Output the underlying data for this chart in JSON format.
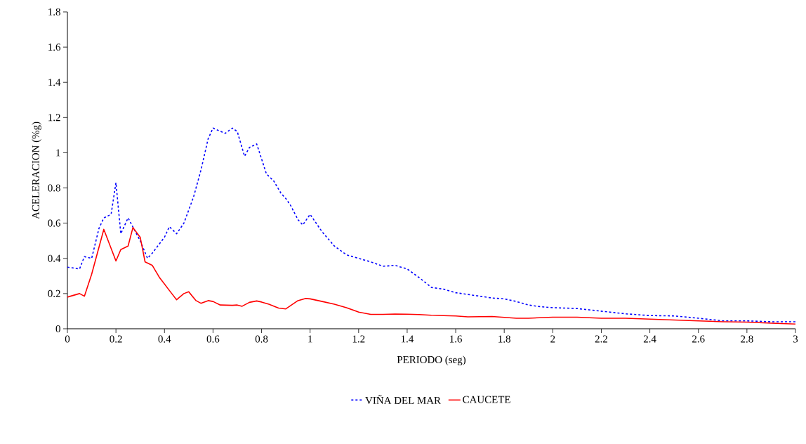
{
  "chart_data": {
    "type": "line",
    "xlabel": "PERIODO (seg)",
    "ylabel": "ACELERACION (%g)",
    "xlim": [
      0,
      3
    ],
    "xticks": [
      0,
      0.2,
      0.4,
      0.6,
      0.8,
      1,
      1.2,
      1.4,
      1.6,
      1.8,
      2,
      2.2,
      2.4,
      2.6,
      2.8,
      3
    ],
    "ylim": [
      0,
      1.8
    ],
    "yticks": [
      0,
      0.2,
      0.4,
      0.6,
      0.8,
      1,
      1.2,
      1.4,
      1.6,
      1.8
    ],
    "grid": false,
    "legend": "bottom",
    "series": [
      {
        "name": "VIÑA DEL MAR",
        "color": "#0000ff",
        "line_style": "dotted",
        "x": [
          0,
          0.05,
          0.07,
          0.1,
          0.13,
          0.15,
          0.18,
          0.2,
          0.22,
          0.25,
          0.3,
          0.33,
          0.35,
          0.4,
          0.42,
          0.45,
          0.48,
          0.52,
          0.55,
          0.58,
          0.6,
          0.65,
          0.68,
          0.7,
          0.73,
          0.75,
          0.78,
          0.82,
          0.85,
          0.88,
          0.9,
          0.92,
          0.95,
          0.97,
          1.0,
          1.05,
          1.1,
          1.15,
          1.2,
          1.25,
          1.3,
          1.35,
          1.4,
          1.45,
          1.5,
          1.55,
          1.6,
          1.65,
          1.7,
          1.75,
          1.8,
          1.85,
          1.9,
          1.95,
          2.0,
          2.1,
          2.2,
          2.3,
          2.4,
          2.5,
          2.6,
          2.7,
          2.8,
          2.9,
          3.0
        ],
        "values": [
          0.35,
          0.34,
          0.41,
          0.4,
          0.57,
          0.63,
          0.65,
          0.83,
          0.54,
          0.63,
          0.5,
          0.4,
          0.43,
          0.52,
          0.58,
          0.54,
          0.6,
          0.75,
          0.9,
          1.08,
          1.14,
          1.11,
          1.14,
          1.12,
          0.98,
          1.03,
          1.05,
          0.88,
          0.84,
          0.77,
          0.74,
          0.7,
          0.62,
          0.59,
          0.65,
          0.55,
          0.47,
          0.42,
          0.4,
          0.38,
          0.355,
          0.36,
          0.34,
          0.29,
          0.235,
          0.225,
          0.205,
          0.195,
          0.185,
          0.175,
          0.17,
          0.155,
          0.135,
          0.125,
          0.12,
          0.115,
          0.1,
          0.085,
          0.075,
          0.073,
          0.06,
          0.045,
          0.045,
          0.04,
          0.04
        ]
      },
      {
        "name": "CAUCETE",
        "color": "#ff0000",
        "line_style": "solid",
        "x": [
          0,
          0.05,
          0.07,
          0.1,
          0.15,
          0.2,
          0.22,
          0.25,
          0.27,
          0.3,
          0.32,
          0.35,
          0.38,
          0.43,
          0.45,
          0.48,
          0.5,
          0.53,
          0.55,
          0.58,
          0.6,
          0.63,
          0.68,
          0.7,
          0.72,
          0.75,
          0.78,
          0.8,
          0.83,
          0.87,
          0.9,
          0.95,
          0.98,
          1.0,
          1.05,
          1.1,
          1.15,
          1.2,
          1.25,
          1.3,
          1.35,
          1.4,
          1.45,
          1.5,
          1.6,
          1.65,
          1.75,
          1.85,
          1.9,
          2.0,
          2.1,
          2.2,
          2.3,
          2.4,
          2.5,
          2.6,
          2.7,
          2.8,
          2.9,
          3.0
        ],
        "values": [
          0.18,
          0.2,
          0.185,
          0.31,
          0.565,
          0.385,
          0.45,
          0.47,
          0.575,
          0.52,
          0.38,
          0.36,
          0.29,
          0.2,
          0.165,
          0.2,
          0.21,
          0.16,
          0.145,
          0.16,
          0.155,
          0.135,
          0.133,
          0.135,
          0.128,
          0.15,
          0.158,
          0.152,
          0.14,
          0.118,
          0.113,
          0.16,
          0.172,
          0.17,
          0.155,
          0.14,
          0.12,
          0.095,
          0.082,
          0.082,
          0.084,
          0.083,
          0.081,
          0.077,
          0.073,
          0.068,
          0.07,
          0.06,
          0.06,
          0.066,
          0.066,
          0.06,
          0.06,
          0.055,
          0.05,
          0.045,
          0.04,
          0.038,
          0.032,
          0.027
        ]
      }
    ]
  }
}
